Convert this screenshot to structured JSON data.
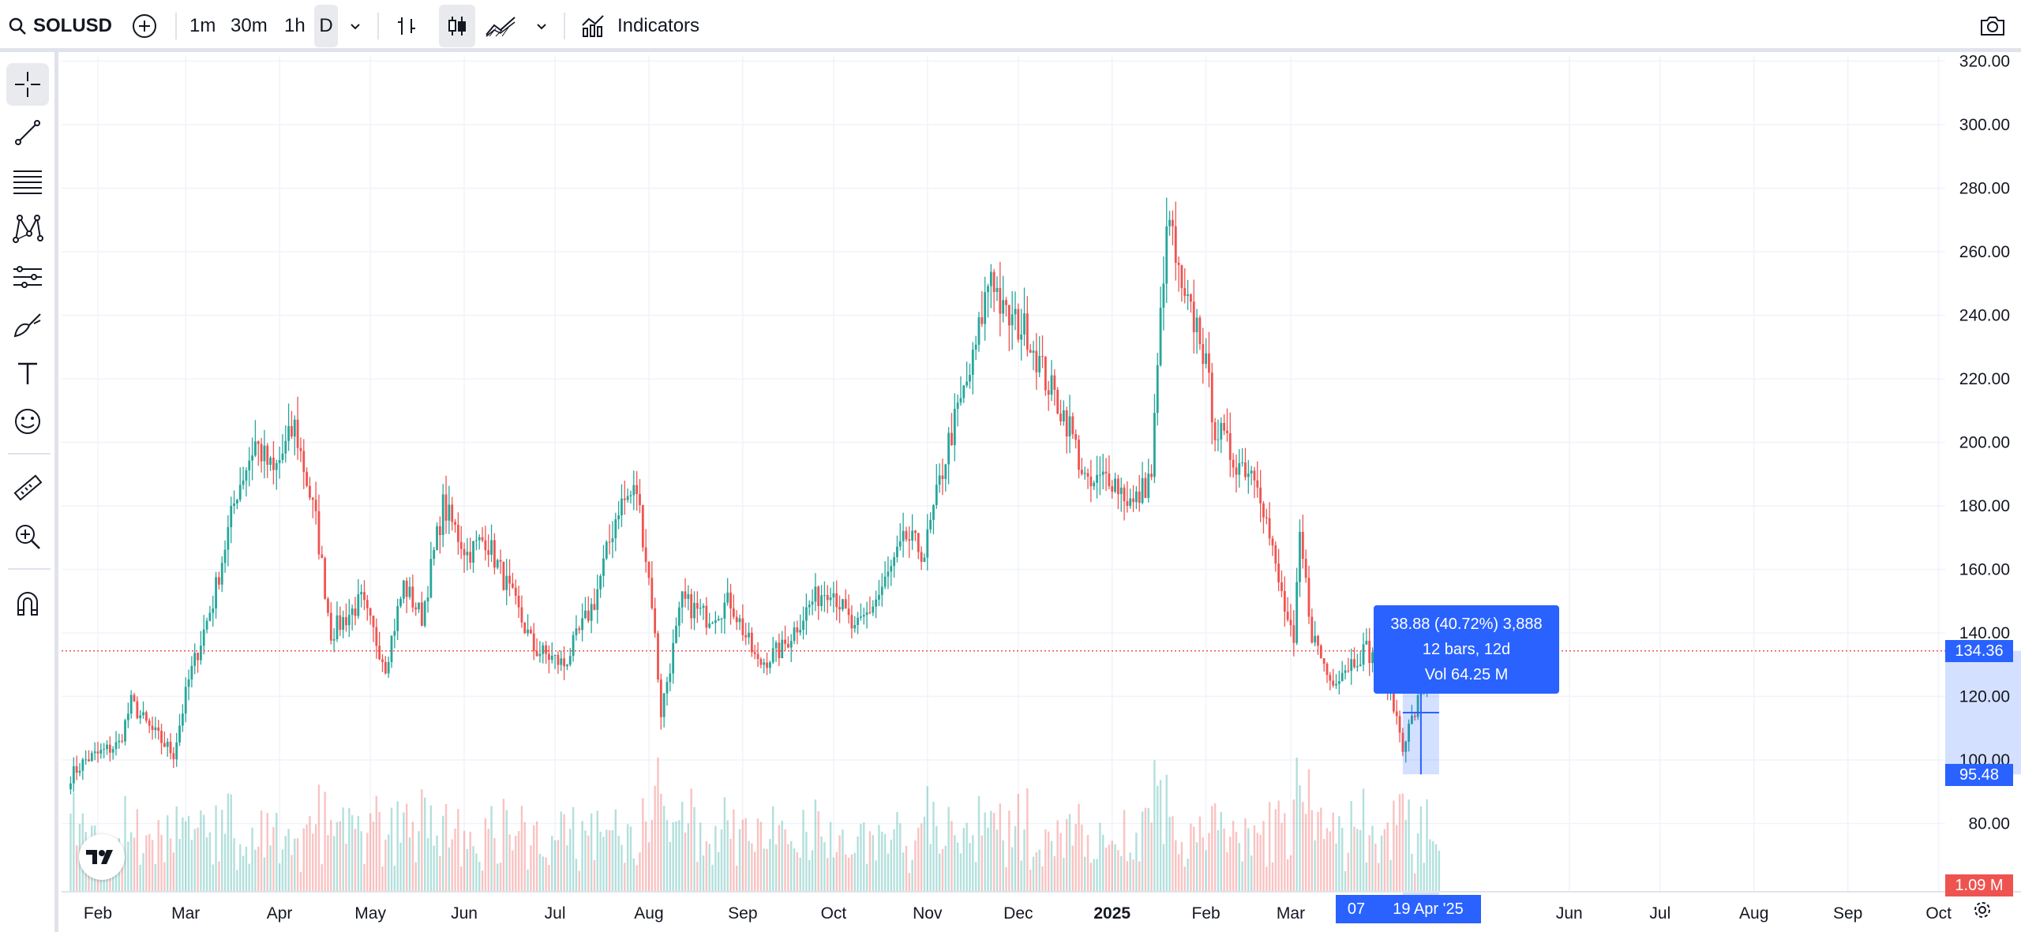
{
  "toolbar": {
    "symbol": "SOLUSD",
    "intervals": [
      "1m",
      "30m",
      "1h",
      "D"
    ],
    "active_interval": "D",
    "indicators_label": "Indicators",
    "icons": [
      "search-icon",
      "add-symbol-icon",
      "chevron-down-icon",
      "bar-chart-icon",
      "candles-icon",
      "area-chart-icon",
      "chevron-down-icon",
      "indicators-icon",
      "camera-icon"
    ]
  },
  "left_tools": [
    {
      "name": "crosshair-icon",
      "active": true
    },
    {
      "name": "trend-line-icon"
    },
    {
      "name": "fib-retracement-icon"
    },
    {
      "name": "xabcd-pattern-icon"
    },
    {
      "name": "prediction-icon"
    },
    {
      "name": "brush-icon"
    },
    {
      "name": "text-icon"
    },
    {
      "name": "emoji-icon"
    },
    {
      "name": "ruler-icon"
    },
    {
      "name": "zoom-in-icon"
    },
    {
      "name": "magnet-icon"
    }
  ],
  "chart_data": {
    "type": "candlestick",
    "symbol": "SOLUSD",
    "interval": "D",
    "price_ticks": [
      "320.00",
      "300.00",
      "280.00",
      "260.00",
      "240.00",
      "220.00",
      "200.00",
      "180.00",
      "160.00",
      "140.00",
      "120.00",
      "100.00",
      "80.00"
    ],
    "time_ticks": [
      {
        "label": "Feb",
        "date": "2024-02-01"
      },
      {
        "label": "Mar",
        "date": "2024-03-01"
      },
      {
        "label": "Apr",
        "date": "2024-04-01"
      },
      {
        "label": "May",
        "date": "2024-05-01"
      },
      {
        "label": "Jun",
        "date": "2024-06-01"
      },
      {
        "label": "Jul",
        "date": "2024-07-01"
      },
      {
        "label": "Aug",
        "date": "2024-08-01"
      },
      {
        "label": "Sep",
        "date": "2024-09-01"
      },
      {
        "label": "Oct",
        "date": "2024-10-01"
      },
      {
        "label": "Nov",
        "date": "2024-11-01"
      },
      {
        "label": "Dec",
        "date": "2024-12-01"
      },
      {
        "label": "2025",
        "date": "2025-01-01",
        "bold": true
      },
      {
        "label": "Feb",
        "date": "2025-02-01"
      },
      {
        "label": "Mar",
        "date": "2025-03-01"
      },
      {
        "label": "Jun",
        "date": "2025-06-01"
      },
      {
        "label": "Jul",
        "date": "2025-07-01"
      },
      {
        "label": "Aug",
        "date": "2025-08-01"
      },
      {
        "label": "Sep",
        "date": "2025-09-01"
      },
      {
        "label": "Oct",
        "date": "2025-10-01"
      }
    ],
    "price_keypoints": [
      [
        "2024-01-23",
        95
      ],
      [
        "2024-01-28",
        100
      ],
      [
        "2024-02-08",
        105
      ],
      [
        "2024-02-12",
        118
      ],
      [
        "2024-02-18",
        110
      ],
      [
        "2024-02-26",
        102
      ],
      [
        "2024-03-02",
        125
      ],
      [
        "2024-03-10",
        150
      ],
      [
        "2024-03-18",
        185
      ],
      [
        "2024-03-24",
        200
      ],
      [
        "2024-03-30",
        190
      ],
      [
        "2024-04-06",
        205
      ],
      [
        "2024-04-13",
        175
      ],
      [
        "2024-04-18",
        140
      ],
      [
        "2024-04-28",
        150
      ],
      [
        "2024-05-06",
        130
      ],
      [
        "2024-05-12",
        155
      ],
      [
        "2024-05-18",
        145
      ],
      [
        "2024-05-25",
        180
      ],
      [
        "2024-06-02",
        165
      ],
      [
        "2024-06-08",
        170
      ],
      [
        "2024-06-15",
        155
      ],
      [
        "2024-06-24",
        135
      ],
      [
        "2024-07-04",
        130
      ],
      [
        "2024-07-14",
        150
      ],
      [
        "2024-07-22",
        180
      ],
      [
        "2024-07-28",
        185
      ],
      [
        "2024-08-02",
        150
      ],
      [
        "2024-08-05",
        115
      ],
      [
        "2024-08-12",
        150
      ],
      [
        "2024-08-20",
        145
      ],
      [
        "2024-08-28",
        150
      ],
      [
        "2024-09-06",
        130
      ],
      [
        "2024-09-14",
        135
      ],
      [
        "2024-09-24",
        150
      ],
      [
        "2024-09-30",
        155
      ],
      [
        "2024-10-08",
        140
      ],
      [
        "2024-10-16",
        152
      ],
      [
        "2024-10-25",
        170
      ],
      [
        "2024-10-31",
        165
      ],
      [
        "2024-11-08",
        200
      ],
      [
        "2024-11-16",
        225
      ],
      [
        "2024-11-22",
        255
      ],
      [
        "2024-11-26",
        240
      ],
      [
        "2024-12-04",
        235
      ],
      [
        "2024-12-10",
        220
      ],
      [
        "2024-12-18",
        205
      ],
      [
        "2024-12-24",
        185
      ],
      [
        "2024-12-31",
        190
      ],
      [
        "2025-01-08",
        180
      ],
      [
        "2025-01-14",
        190
      ],
      [
        "2025-01-18",
        255
      ],
      [
        "2025-01-20",
        270
      ],
      [
        "2025-01-24",
        245
      ],
      [
        "2025-01-30",
        235
      ],
      [
        "2025-02-04",
        205
      ],
      [
        "2025-02-10",
        195
      ],
      [
        "2025-02-18",
        190
      ],
      [
        "2025-02-24",
        160
      ],
      [
        "2025-03-02",
        135
      ],
      [
        "2025-03-04",
        170
      ],
      [
        "2025-03-08",
        140
      ],
      [
        "2025-03-14",
        125
      ],
      [
        "2025-03-20",
        130
      ],
      [
        "2025-03-26",
        135
      ],
      [
        "2025-04-02",
        125
      ],
      [
        "2025-04-07",
        105
      ],
      [
        "2025-04-11",
        115
      ],
      [
        "2025-04-15",
        128
      ],
      [
        "2025-04-19",
        134.36
      ]
    ],
    "volume_ticks": [
      "1.09 M"
    ],
    "current_price": "134.36",
    "measure_low_price": "95.48",
    "measure": {
      "line1": "38.88 (40.72%) 3,888",
      "line2": "12 bars, 12d",
      "line3": "Vol 64.25 M"
    },
    "crosshair_time_start": "07",
    "crosshair_time_end": "19 Apr '25",
    "colors": {
      "up": "#26a69a",
      "down": "#ef5350",
      "accent": "#2962ff",
      "grid": "#f0f3fa"
    }
  }
}
